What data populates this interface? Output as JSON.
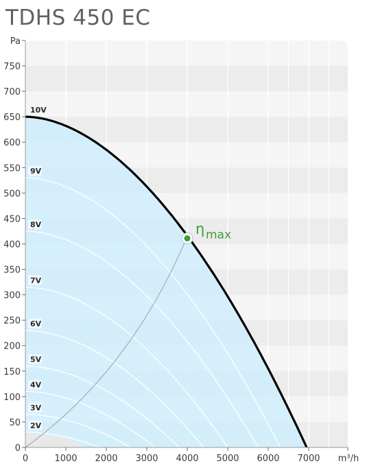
{
  "title": "TDHS 450 EC",
  "chart_data": {
    "type": "line",
    "title": "TDHS 450 EC",
    "xlabel": "m³/h",
    "ylabel": "Pa",
    "xlim": [
      0,
      7800
    ],
    "ylim": [
      0,
      800
    ],
    "x_ticks": [
      0,
      1000,
      2000,
      3000,
      4000,
      5000,
      6000,
      7000
    ],
    "y_ticks": [
      0,
      50,
      100,
      150,
      200,
      250,
      300,
      350,
      400,
      450,
      500,
      550,
      600,
      650,
      700,
      750
    ],
    "grid": true,
    "series": [
      {
        "name": "10V",
        "p0": 650,
        "q0": 6950
      },
      {
        "name": "9V",
        "p0": 530,
        "q0": 6300
      },
      {
        "name": "8V",
        "p0": 425,
        "q0": 5750
      },
      {
        "name": "7V",
        "p0": 315,
        "q0": 5000
      },
      {
        "name": "6V",
        "p0": 230,
        "q0": 4400
      },
      {
        "name": "5V",
        "p0": 160,
        "q0": 3800
      },
      {
        "name": "4V",
        "p0": 110,
        "q0": 3200
      },
      {
        "name": "3V",
        "p0": 65,
        "q0": 2600
      },
      {
        "name": "2V",
        "p0": 30,
        "q0": 1850
      }
    ],
    "max_efficiency": {
      "label": "η",
      "label_sub": "max",
      "x": 4000,
      "y": 415
    },
    "colors": {
      "fill": "#cfeefd",
      "curve": "#000000",
      "speed_lines": "#ffffff",
      "eta": "#3a9f3a"
    }
  }
}
